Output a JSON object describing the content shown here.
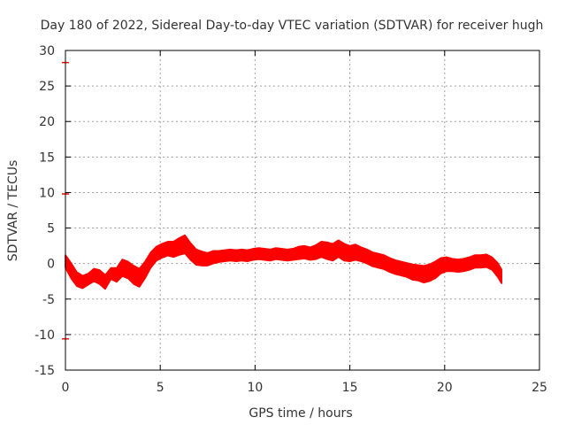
{
  "chart_data": {
    "type": "scatter",
    "title": "Day 180 of 2022, Sidereal Day-to-day VTEC variation (SDTVAR) for receiver hugh",
    "xlabel": "GPS time / hours",
    "ylabel": "SDTVAR / TECUs",
    "xlim": [
      0,
      25
    ],
    "ylim": [
      -15,
      30
    ],
    "xticks": [
      0,
      5,
      10,
      15,
      20,
      25
    ],
    "yticks": [
      -15,
      -10,
      -5,
      0,
      5,
      10,
      15,
      20,
      25,
      30
    ],
    "grid": true,
    "series": [
      {
        "name": "SDTVAR",
        "color": "#ff0000",
        "x": [
          0.0,
          0.3,
          0.6,
          0.9,
          1.2,
          1.5,
          1.8,
          2.1,
          2.4,
          2.7,
          3.0,
          3.3,
          3.6,
          3.9,
          4.2,
          4.5,
          4.8,
          5.1,
          5.4,
          5.7,
          6.0,
          6.3,
          6.6,
          6.9,
          7.2,
          7.5,
          7.8,
          8.1,
          8.4,
          8.7,
          9.0,
          9.3,
          9.6,
          9.9,
          10.2,
          10.5,
          10.8,
          11.1,
          11.4,
          11.7,
          12.0,
          12.3,
          12.6,
          12.9,
          13.2,
          13.5,
          13.8,
          14.1,
          14.4,
          14.7,
          15.0,
          15.3,
          15.6,
          15.9,
          16.2,
          16.5,
          16.8,
          17.1,
          17.4,
          17.7,
          18.0,
          18.3,
          18.6,
          18.9,
          19.2,
          19.5,
          19.8,
          20.1,
          20.4,
          20.7,
          21.0,
          21.3,
          21.6,
          21.9,
          22.2,
          22.5,
          22.8,
          23.0
        ],
        "y": [
          0.3,
          -1.0,
          -2.2,
          -2.6,
          -2.2,
          -1.6,
          -1.9,
          -2.6,
          -1.4,
          -1.6,
          -0.6,
          -0.9,
          -1.6,
          -2.0,
          -0.9,
          0.5,
          1.4,
          1.8,
          2.1,
          2.0,
          2.4,
          2.7,
          1.7,
          0.9,
          0.7,
          0.6,
          0.9,
          1.0,
          1.1,
          1.2,
          1.1,
          1.2,
          1.1,
          1.3,
          1.4,
          1.3,
          1.2,
          1.4,
          1.3,
          1.2,
          1.3,
          1.5,
          1.6,
          1.4,
          1.6,
          2.0,
          1.8,
          1.6,
          2.1,
          1.6,
          1.4,
          1.6,
          1.3,
          1.0,
          0.6,
          0.4,
          0.2,
          -0.2,
          -0.5,
          -0.7,
          -0.9,
          -1.2,
          -1.3,
          -1.5,
          -1.3,
          -0.9,
          -0.3,
          -0.1,
          -0.2,
          -0.3,
          -0.2,
          0.0,
          0.3,
          0.3,
          0.4,
          0.0,
          -0.9,
          -1.8
        ],
        "spread": [
          0.9,
          1.1,
          1.0,
          0.9,
          0.8,
          0.9,
          1.0,
          1.0,
          0.8,
          1.0,
          1.2,
          1.2,
          1.3,
          1.3,
          1.2,
          1.1,
          1.0,
          1.0,
          1.0,
          1.1,
          1.2,
          1.3,
          1.2,
          1.1,
          1.0,
          0.9,
          0.9,
          0.8,
          0.8,
          0.8,
          0.8,
          0.8,
          0.8,
          0.8,
          0.8,
          0.8,
          0.8,
          0.8,
          0.8,
          0.8,
          0.8,
          0.9,
          0.9,
          0.9,
          1.0,
          1.1,
          1.2,
          1.2,
          1.2,
          1.2,
          1.1,
          1.1,
          1.0,
          1.0,
          1.0,
          1.0,
          1.0,
          1.0,
          1.0,
          1.0,
          1.0,
          1.1,
          1.1,
          1.2,
          1.2,
          1.2,
          1.1,
          1.0,
          0.9,
          0.9,
          0.9,
          0.9,
          0.9,
          0.9,
          0.9,
          0.9,
          1.0,
          1.0
        ]
      }
    ],
    "axis_markers": [
      {
        "x": 0,
        "y": 28.3
      },
      {
        "x": 0,
        "y": 9.8
      },
      {
        "x": 0,
        "y": -10.6
      }
    ]
  }
}
